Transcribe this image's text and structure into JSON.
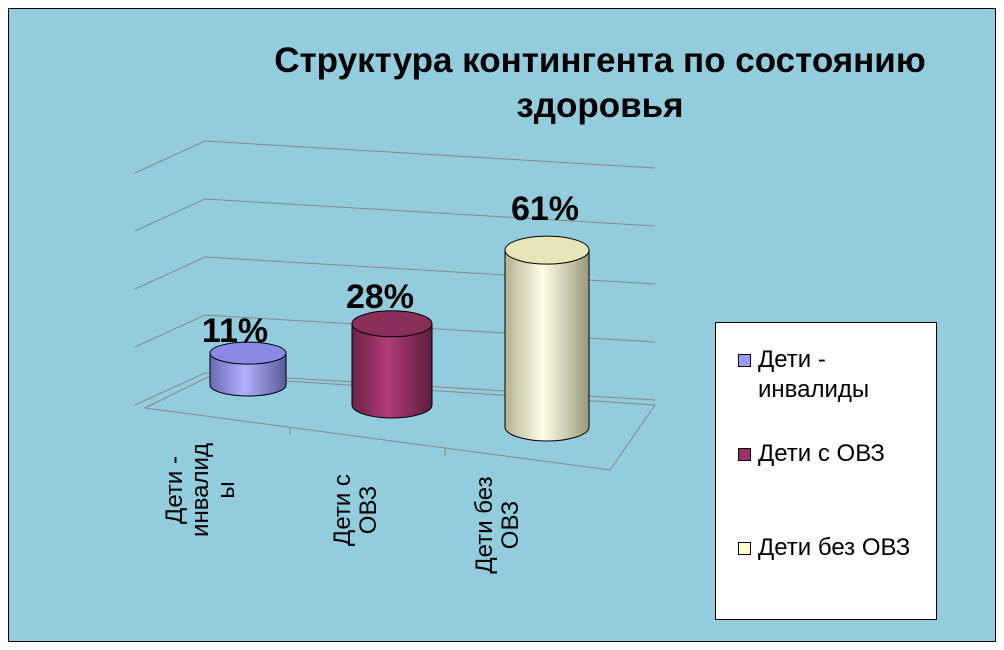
{
  "chart_data": {
    "type": "bar3d",
    "title": "Структура контингента по состоянию здоровья",
    "categories": [
      "Дети - инвалиды",
      "Дети с ОВЗ",
      "Дети без ОВЗ"
    ],
    "values": [
      11,
      28,
      61
    ],
    "value_labels": [
      "11%",
      "28%",
      "61%"
    ],
    "colors": [
      "#9999ff",
      "#993366",
      "#ffffcc"
    ],
    "ylim": [
      0,
      80
    ],
    "yticks": [
      0,
      20,
      40,
      60,
      80
    ],
    "grid": true,
    "legend": "right"
  }
}
